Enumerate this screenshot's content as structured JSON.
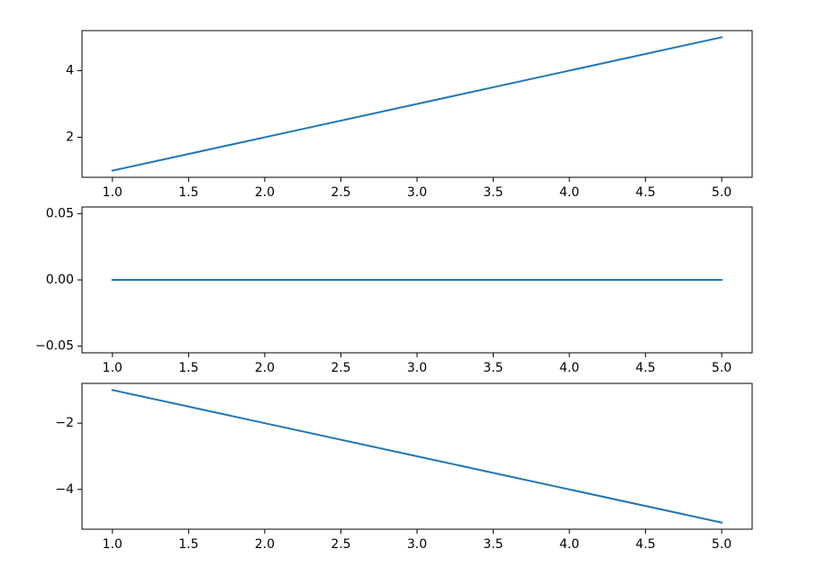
{
  "chart_data": [
    {
      "type": "line",
      "x": [
        1,
        2,
        3,
        4,
        5
      ],
      "series": [
        {
          "color": "#1f77b4",
          "values": [
            1,
            2,
            3,
            4,
            5
          ]
        }
      ],
      "xlim": [
        0.8,
        5.2
      ],
      "ylim": [
        0.8,
        5.2
      ],
      "xticks": [
        {
          "value": 1,
          "label": "1.0"
        },
        1.5,
        {
          "value": 2,
          "label": "2.0"
        },
        2.5,
        {
          "value": 3,
          "label": "3.0"
        },
        3.5,
        {
          "value": 4,
          "label": "4.0"
        },
        4.5,
        {
          "value": 5,
          "label": "5.0"
        }
      ],
      "yticks": [
        2,
        4
      ]
    },
    {
      "type": "line",
      "x": [
        1,
        2,
        3,
        4,
        5
      ],
      "series": [
        {
          "color": "#1f77b4",
          "values": [
            0,
            0,
            0,
            0,
            0
          ]
        }
      ],
      "xlim": [
        0.8,
        5.2
      ],
      "ylim": [
        -0.055,
        0.055
      ],
      "xticks": [
        {
          "value": 1,
          "label": "1.0"
        },
        1.5,
        {
          "value": 2,
          "label": "2.0"
        },
        2.5,
        {
          "value": 3,
          "label": "3.0"
        },
        3.5,
        {
          "value": 4,
          "label": "4.0"
        },
        4.5,
        {
          "value": 5,
          "label": "5.0"
        }
      ],
      "yticks": [
        {
          "value": -0.05,
          "label": "−0.05"
        },
        {
          "value": 0,
          "label": "0.00"
        },
        0.05
      ]
    },
    {
      "type": "line",
      "x": [
        1,
        2,
        3,
        4,
        5
      ],
      "series": [
        {
          "color": "#1f77b4",
          "values": [
            -1,
            -2,
            -3,
            -4,
            -5
          ]
        }
      ],
      "xlim": [
        0.8,
        5.2
      ],
      "ylim": [
        -5.2,
        -0.8
      ],
      "xticks": [
        {
          "value": 1,
          "label": "1.0"
        },
        1.5,
        {
          "value": 2,
          "label": "2.0"
        },
        2.5,
        {
          "value": 3,
          "label": "3.0"
        },
        3.5,
        {
          "value": 4,
          "label": "4.0"
        },
        4.5,
        {
          "value": 5,
          "label": "5.0"
        }
      ],
      "yticks": [
        {
          "value": -4,
          "label": "−4"
        },
        {
          "value": -2,
          "label": "−2"
        }
      ]
    }
  ]
}
